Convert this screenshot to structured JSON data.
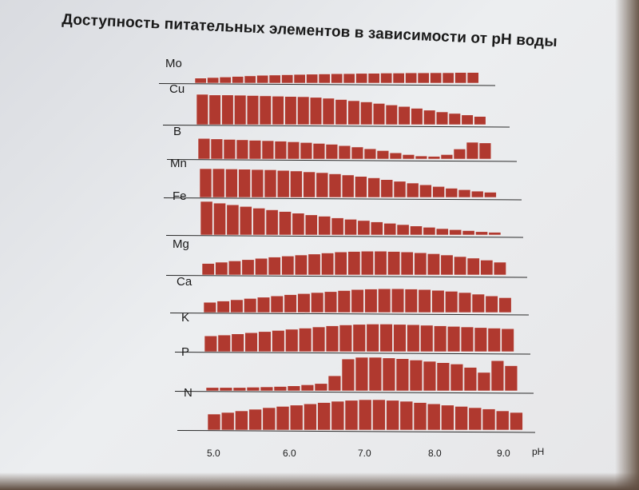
{
  "slide": {
    "title": "Доступность питательных элементов в зависимости от pH воды"
  },
  "colors": {
    "bar": "#b0392f",
    "bar_edge": "#f0ecec",
    "baseline": "#2a2a2a"
  },
  "chart_data": {
    "type": "bar",
    "title": "Доступность питательных элементов в зависимости от pH воды",
    "xlabel": "pH",
    "x_ticks": [
      "5.0",
      "6.0",
      "7.0",
      "8.0",
      "9.0"
    ],
    "xlim": [
      5.0,
      9.0
    ],
    "series": [
      {
        "name": "Mo",
        "values": [
          0.45,
          0.5,
          0.55,
          0.6,
          0.65,
          0.7,
          0.72,
          0.75,
          0.78,
          0.8,
          0.82,
          0.84,
          0.85,
          0.87,
          0.88,
          0.9,
          0.9,
          0.92,
          0.92,
          0.93,
          0.93,
          0.95,
          0.95
        ]
      },
      {
        "name": "Cu",
        "values": [
          1.0,
          0.98,
          0.98,
          0.97,
          0.96,
          0.95,
          0.94,
          0.93,
          0.92,
          0.9,
          0.87,
          0.83,
          0.79,
          0.75,
          0.7,
          0.65,
          0.6,
          0.54,
          0.48,
          0.42,
          0.37,
          0.32,
          0.27
        ]
      },
      {
        "name": "B",
        "values": [
          0.92,
          0.9,
          0.88,
          0.86,
          0.84,
          0.82,
          0.8,
          0.77,
          0.74,
          0.7,
          0.66,
          0.6,
          0.54,
          0.46,
          0.38,
          0.28,
          0.2,
          0.14,
          0.12,
          0.2,
          0.45,
          0.75,
          0.72
        ]
      },
      {
        "name": "Mn",
        "values": [
          1.0,
          1.0,
          0.99,
          0.98,
          0.97,
          0.96,
          0.94,
          0.92,
          0.89,
          0.86,
          0.82,
          0.78,
          0.73,
          0.68,
          0.62,
          0.56,
          0.5,
          0.44,
          0.38,
          0.32,
          0.27,
          0.22,
          0.18
        ]
      },
      {
        "name": "Fe",
        "values": [
          1.0,
          0.95,
          0.9,
          0.85,
          0.8,
          0.75,
          0.7,
          0.65,
          0.6,
          0.56,
          0.51,
          0.47,
          0.43,
          0.39,
          0.35,
          0.31,
          0.27,
          0.23,
          0.19,
          0.16,
          0.13,
          0.1,
          0.08
        ]
      },
      {
        "name": "Mg",
        "values": [
          0.45,
          0.5,
          0.55,
          0.6,
          0.65,
          0.7,
          0.74,
          0.78,
          0.82,
          0.86,
          0.9,
          0.92,
          0.93,
          0.93,
          0.92,
          0.9,
          0.87,
          0.83,
          0.78,
          0.72,
          0.66,
          0.58,
          0.5
        ]
      },
      {
        "name": "Ca",
        "values": [
          0.4,
          0.45,
          0.5,
          0.55,
          0.6,
          0.65,
          0.7,
          0.74,
          0.78,
          0.82,
          0.86,
          0.9,
          0.92,
          0.93,
          0.93,
          0.92,
          0.9,
          0.87,
          0.83,
          0.78,
          0.72,
          0.65,
          0.58
        ]
      },
      {
        "name": "K",
        "values": [
          0.55,
          0.58,
          0.62,
          0.66,
          0.7,
          0.74,
          0.78,
          0.82,
          0.86,
          0.9,
          0.93,
          0.95,
          0.96,
          0.96,
          0.95,
          0.94,
          0.92,
          0.9,
          0.88,
          0.86,
          0.84,
          0.82,
          0.8
        ]
      },
      {
        "name": "P",
        "values": [
          0.1,
          0.1,
          0.1,
          0.11,
          0.12,
          0.13,
          0.15,
          0.18,
          0.22,
          0.45,
          0.95,
          1.0,
          1.0,
          0.98,
          0.96,
          0.92,
          0.88,
          0.84,
          0.8,
          0.7,
          0.55,
          0.9,
          0.75
        ]
      },
      {
        "name": "N",
        "values": [
          0.5,
          0.55,
          0.6,
          0.65,
          0.7,
          0.74,
          0.78,
          0.82,
          0.86,
          0.9,
          0.93,
          0.95,
          0.95,
          0.93,
          0.9,
          0.86,
          0.82,
          0.78,
          0.74,
          0.7,
          0.66,
          0.6,
          0.55
        ]
      }
    ]
  }
}
